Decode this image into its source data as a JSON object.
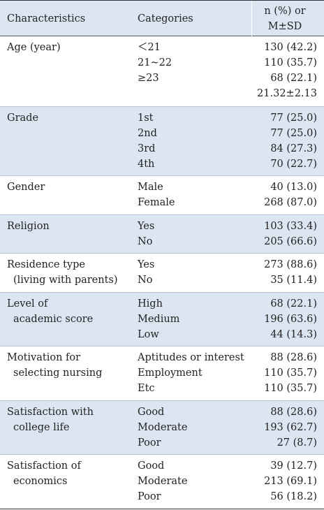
{
  "table": {
    "header": [
      "Characteristics",
      "Categories",
      [
        "n (%) or",
        "M±SD"
      ]
    ],
    "rows": [
      {
        "characteristic": [
          "Age (year)"
        ],
        "categories": [
          "＜21",
          "21~22",
          "≥23"
        ],
        "values": [
          "130 (42.2)",
          "110 (35.7)",
          "68 (22.1)",
          "21.32±2.13"
        ]
      },
      {
        "characteristic": [
          "Grade"
        ],
        "categories": [
          "1st",
          "2nd",
          "3rd",
          "4th"
        ],
        "values": [
          "77 (25.0)",
          "77 (25.0)",
          "84 (27.3)",
          "70 (22.7)"
        ]
      },
      {
        "characteristic": [
          "Gender"
        ],
        "categories": [
          "Male",
          "Female"
        ],
        "values": [
          "40 (13.0)",
          "268 (87.0)"
        ]
      },
      {
        "characteristic": [
          "Religion"
        ],
        "categories": [
          "Yes",
          "No"
        ],
        "values": [
          "103 (33.4)",
          "205 (66.6)"
        ]
      },
      {
        "characteristic": [
          "Residence type",
          "(living with parents)"
        ],
        "categories": [
          "Yes",
          "No"
        ],
        "values": [
          "273 (88.6)",
          "35 (11.4)"
        ]
      },
      {
        "characteristic": [
          "Level of",
          "academic score"
        ],
        "categories": [
          "High",
          "Medium",
          "Low"
        ],
        "values": [
          "68 (22.1)",
          "196 (63.6)",
          "44 (14.3)"
        ]
      },
      {
        "characteristic": [
          "Motivation for",
          "selecting nursing"
        ],
        "categories": [
          "Aptitudes or interest",
          "Employment",
          "Etc"
        ],
        "values": [
          "88 (28.6)",
          "110 (35.7)",
          "110 (35.7)"
        ]
      },
      {
        "characteristic": [
          "Satisfaction with",
          "college life"
        ],
        "categories": [
          "Good",
          "Moderate",
          "Poor"
        ],
        "values": [
          "88 (28.6)",
          "193 (62.7)",
          "27 (8.7)"
        ]
      },
      {
        "characteristic": [
          "Satisfaction of",
          "economics"
        ],
        "categories": [
          "Good",
          "Moderate",
          "Poor"
        ],
        "values": [
          "39 (12.7)",
          "213 (69.1)",
          "56 (18.2)"
        ]
      }
    ]
  }
}
